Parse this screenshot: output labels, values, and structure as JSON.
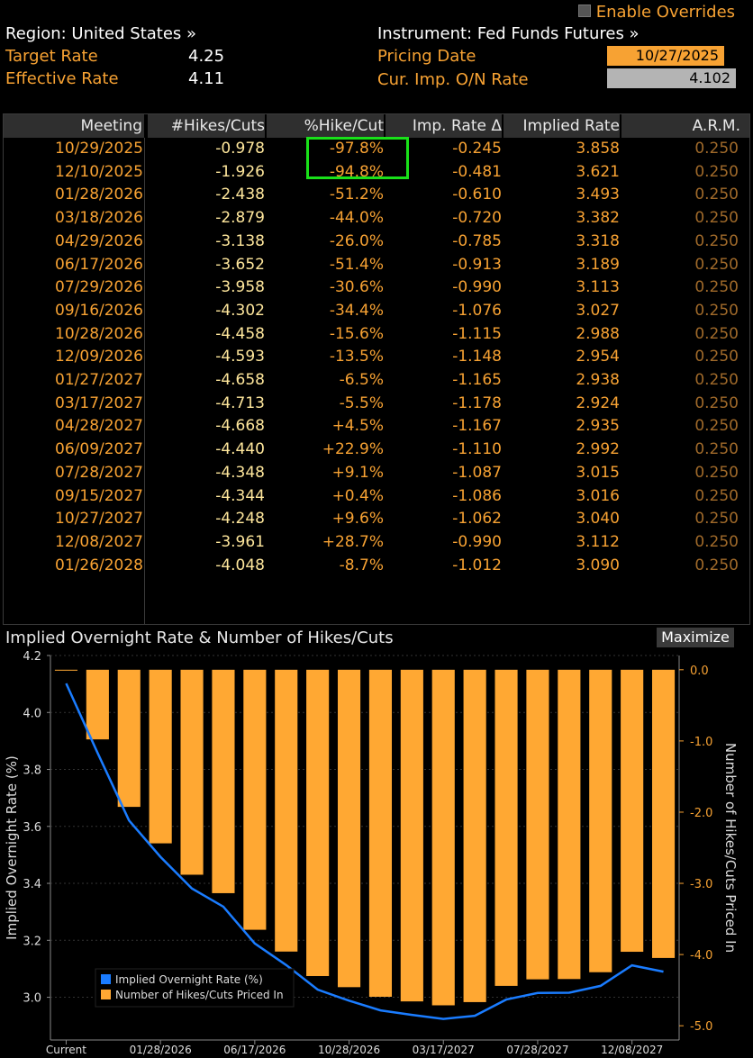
{
  "top": {
    "enable_overrides": "Enable Overrides",
    "region": "Region: United States »",
    "instrument": "Instrument: Fed Funds Futures »",
    "target_rate_label": "Target Rate",
    "target_rate_value": "4.25",
    "effective_rate_label": "Effective Rate",
    "effective_rate_value": "4.11",
    "pricing_date_label": "Pricing Date",
    "pricing_date_value": "10/27/2025",
    "cur_imp_label": "Cur. Imp. O/N Rate",
    "cur_imp_value": "4.102"
  },
  "table": {
    "headers": [
      "Meeting",
      "#Hikes/Cuts",
      "%Hike/Cut",
      "Imp. Rate Δ",
      "Implied Rate",
      "A.R.M."
    ],
    "rows": [
      [
        "10/29/2025",
        "-0.978",
        "-97.8%",
        "-0.245",
        "3.858",
        "0.250"
      ],
      [
        "12/10/2025",
        "-1.926",
        "-94.8%",
        "-0.481",
        "3.621",
        "0.250"
      ],
      [
        "01/28/2026",
        "-2.438",
        "-51.2%",
        "-0.610",
        "3.493",
        "0.250"
      ],
      [
        "03/18/2026",
        "-2.879",
        "-44.0%",
        "-0.720",
        "3.382",
        "0.250"
      ],
      [
        "04/29/2026",
        "-3.138",
        "-26.0%",
        "-0.785",
        "3.318",
        "0.250"
      ],
      [
        "06/17/2026",
        "-3.652",
        "-51.4%",
        "-0.913",
        "3.189",
        "0.250"
      ],
      [
        "07/29/2026",
        "-3.958",
        "-30.6%",
        "-0.990",
        "3.113",
        "0.250"
      ],
      [
        "09/16/2026",
        "-4.302",
        "-34.4%",
        "-1.076",
        "3.027",
        "0.250"
      ],
      [
        "10/28/2026",
        "-4.458",
        "-15.6%",
        "-1.115",
        "2.988",
        "0.250"
      ],
      [
        "12/09/2026",
        "-4.593",
        "-13.5%",
        "-1.148",
        "2.954",
        "0.250"
      ],
      [
        "01/27/2027",
        "-4.658",
        "-6.5%",
        "-1.165",
        "2.938",
        "0.250"
      ],
      [
        "03/17/2027",
        "-4.713",
        "-5.5%",
        "-1.178",
        "2.924",
        "0.250"
      ],
      [
        "04/28/2027",
        "-4.668",
        "+4.5%",
        "-1.167",
        "2.935",
        "0.250"
      ],
      [
        "06/09/2027",
        "-4.440",
        "+22.9%",
        "-1.110",
        "2.992",
        "0.250"
      ],
      [
        "07/28/2027",
        "-4.348",
        "+9.1%",
        "-1.087",
        "3.015",
        "0.250"
      ],
      [
        "09/15/2027",
        "-4.344",
        "+0.4%",
        "-1.086",
        "3.016",
        "0.250"
      ],
      [
        "10/27/2027",
        "-4.248",
        "+9.6%",
        "-1.062",
        "3.040",
        "0.250"
      ],
      [
        "12/08/2027",
        "-3.961",
        "+28.7%",
        "-0.990",
        "3.112",
        "0.250"
      ],
      [
        "01/26/2028",
        "-4.048",
        "-8.7%",
        "-1.012",
        "3.090",
        "0.250"
      ]
    ]
  },
  "chart_section": {
    "title": "Implied Overnight Rate & Number of Hikes/Cuts",
    "maximize_label": "Maximize"
  },
  "chart_data": {
    "type": "bar",
    "title": "Implied Overnight Rate & Number of Hikes/Cuts",
    "x_tick_labels": [
      "Current",
      "01/28/2026",
      "06/17/2026",
      "10/28/2026",
      "03/17/2027",
      "07/28/2027",
      "12/08/2027"
    ],
    "categories": [
      "Current",
      "10/29/2025",
      "12/10/2025",
      "01/28/2026",
      "03/18/2026",
      "04/29/2026",
      "06/17/2026",
      "07/29/2026",
      "09/16/2026",
      "10/28/2026",
      "12/09/2026",
      "01/27/2027",
      "03/17/2027",
      "04/28/2027",
      "06/09/2027",
      "07/28/2027",
      "09/15/2027",
      "10/27/2027",
      "12/08/2027",
      "01/26/2028"
    ],
    "series": [
      {
        "name": "Implied Overnight Rate (%)",
        "type": "line",
        "axis": "left",
        "color": "#1a7cff",
        "values": [
          4.102,
          3.858,
          3.621,
          3.493,
          3.382,
          3.318,
          3.189,
          3.113,
          3.027,
          2.988,
          2.954,
          2.938,
          2.924,
          2.935,
          2.992,
          3.015,
          3.016,
          3.04,
          3.112,
          3.09
        ]
      },
      {
        "name": "Number of Hikes/Cuts Priced In",
        "type": "bar",
        "axis": "right",
        "color": "#ffa833",
        "values": [
          0,
          -0.978,
          -1.926,
          -2.438,
          -2.879,
          -3.138,
          -3.652,
          -3.958,
          -4.302,
          -4.458,
          -4.593,
          -4.658,
          -4.713,
          -4.668,
          -4.44,
          -4.348,
          -4.344,
          -4.248,
          -3.961,
          -4.048
        ]
      }
    ],
    "ylabel": "Implied Overnight Rate (%)",
    "ylim": [
      2.85,
      4.2
    ],
    "y_ticks": [
      "4.2",
      "4.0",
      "3.8",
      "3.6",
      "3.4",
      "3.2",
      "3.0"
    ],
    "y2label": "Number of Hikes/Cuts Priced In",
    "y2lim": [
      -5.2,
      0.2
    ],
    "y2_ticks": [
      "0.0",
      "-1.0",
      "-2.0",
      "-3.0",
      "-4.0",
      "-5.0"
    ],
    "legend_position": "bottom-left",
    "grid": true
  }
}
